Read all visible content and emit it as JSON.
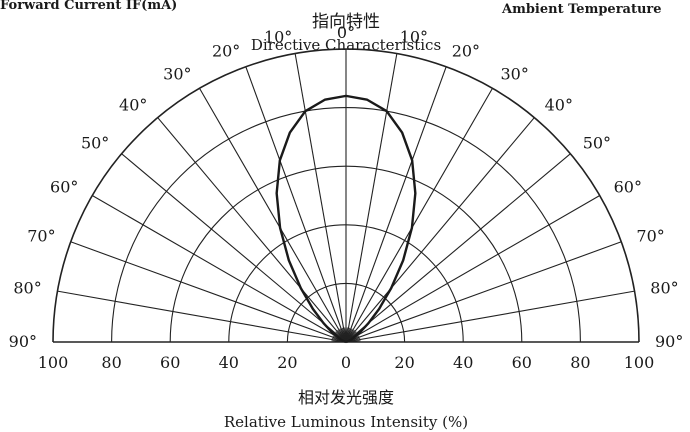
{
  "header": {
    "left_cut_label": "Forward Current IF(mA)",
    "right_cut_label": "Ambient Temperature"
  },
  "chart_data": {
    "type": "polar",
    "title_cn": "指向特性",
    "title": "Directive Characteristics",
    "xlabel_cn": "相对发光强度",
    "xlabel": "Relative Luminous Intensity (%)",
    "angle_labels": [
      "0°",
      "10°",
      "20°",
      "30°",
      "40°",
      "50°",
      "60°",
      "70°",
      "80°",
      "90°"
    ],
    "radial_tick_labels": [
      "100",
      "80",
      "60",
      "40",
      "20",
      "0",
      "20",
      "40",
      "60",
      "80",
      "100"
    ],
    "radial_range": [
      0,
      100
    ],
    "angle_range_deg": [
      -90,
      90
    ],
    "grid": true,
    "series": [
      {
        "angles_deg": [
          0,
          5,
          10,
          15,
          20,
          25,
          30,
          35,
          40,
          45,
          50,
          55,
          60,
          65,
          70,
          75,
          80,
          85,
          90
        ],
        "values": [
          84,
          83,
          80,
          74,
          66,
          56,
          45,
          34,
          24,
          16,
          10,
          6,
          3,
          2,
          1,
          0,
          0,
          0,
          0
        ]
      }
    ]
  }
}
